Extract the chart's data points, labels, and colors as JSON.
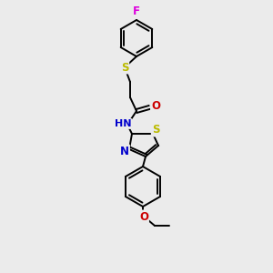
{
  "background_color": "#ebebeb",
  "atom_colors": {
    "C": "#000000",
    "N": "#0000cc",
    "O": "#cc0000",
    "S": "#bbbb00",
    "F": "#dd00dd",
    "H": "#000000"
  },
  "bond_color": "#000000",
  "bond_width": 1.4,
  "figsize": [
    3.0,
    3.0
  ],
  "dpi": 100
}
